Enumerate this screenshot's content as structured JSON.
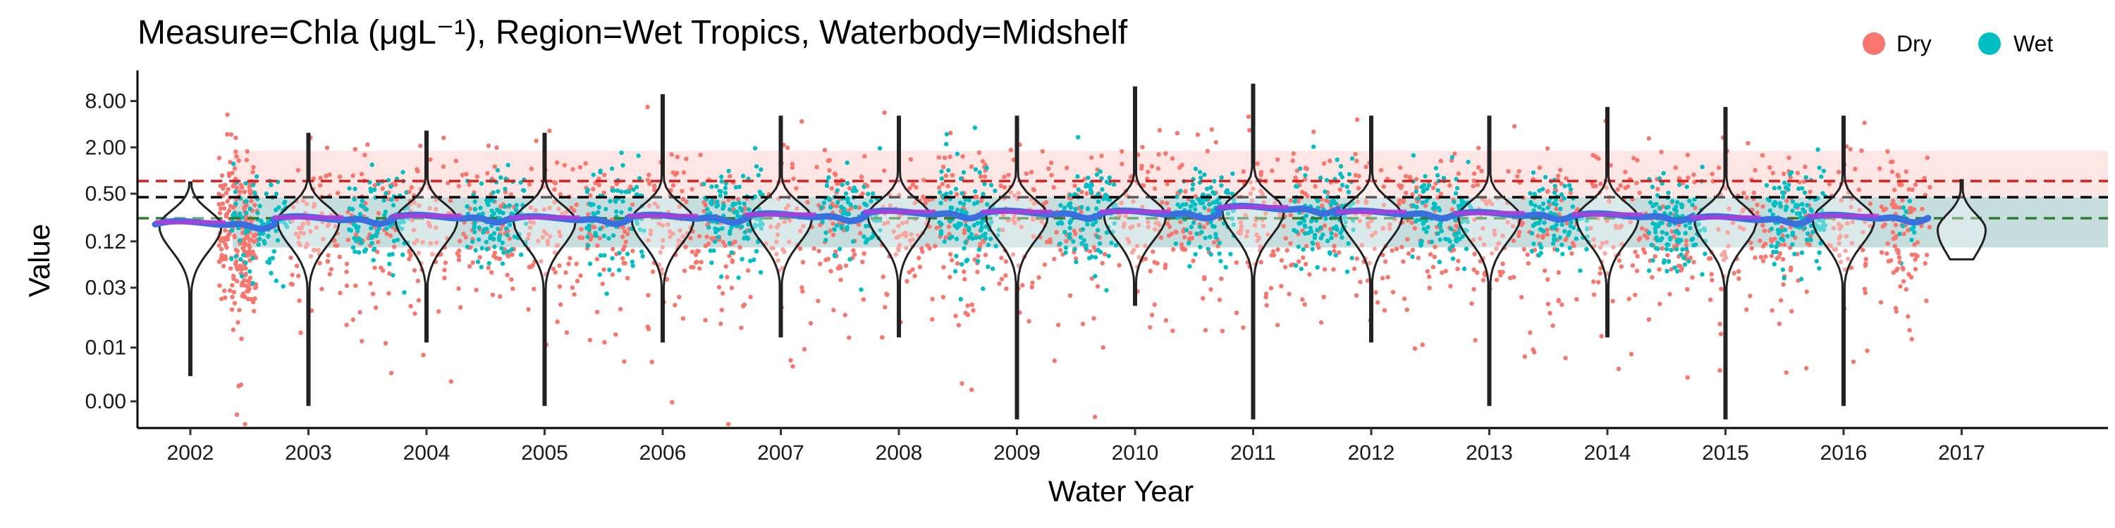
{
  "chart_data": {
    "type": "violin",
    "title": "Measure=Chla (μgL⁻¹), Region=Wet Tropics, Waterbody=Midshelf",
    "xlabel": "Water Year",
    "ylabel": "Value",
    "y_scale": "log",
    "y_ticks": [
      {
        "value": 0.001,
        "label": "0.00"
      },
      {
        "value": 0.005,
        "label": "0.01"
      },
      {
        "value": 0.03,
        "label": "0.03"
      },
      {
        "value": 0.12,
        "label": "0.12"
      },
      {
        "value": 0.5,
        "label": "0.50"
      },
      {
        "value": 2.0,
        "label": "2.00"
      },
      {
        "value": 8.0,
        "label": "8.00"
      }
    ],
    "ylim": [
      0.00045,
      20
    ],
    "categories": [
      "2002",
      "2003",
      "2004",
      "2005",
      "2006",
      "2007",
      "2008",
      "2009",
      "2010",
      "2011",
      "2012",
      "2013",
      "2014",
      "2015",
      "2016",
      "2017"
    ],
    "legend": {
      "placement": "top-right",
      "entries": [
        {
          "name": "Dry",
          "color": "#F8766D"
        },
        {
          "name": "Wet",
          "color": "#00BFC4"
        }
      ]
    },
    "guideline_bands": [
      {
        "from": 0.1,
        "to": 1.8,
        "color": "#F8766D",
        "opacity": 0.18
      },
      {
        "from": 0.1,
        "to": 0.45,
        "color": "#00BFC4",
        "opacity": 0.22
      }
    ],
    "reference_lines": [
      {
        "value": 0.73,
        "color": "#dd1c1c"
      },
      {
        "value": 0.45,
        "color": "#000000"
      },
      {
        "value": 0.24,
        "color": "#2e7d32"
      }
    ],
    "medians": [
      0.19,
      0.22,
      0.23,
      0.22,
      0.23,
      0.24,
      0.26,
      0.26,
      0.26,
      0.3,
      0.26,
      0.25,
      0.24,
      0.22,
      0.23,
      0.17
    ],
    "ranges": [
      [
        0.0022,
        0.7
      ],
      [
        0.0009,
        3.0
      ],
      [
        0.006,
        3.2
      ],
      [
        0.0009,
        3.0
      ],
      [
        0.006,
        9.5
      ],
      [
        0.007,
        5.0
      ],
      [
        0.007,
        5.0
      ],
      [
        0.0006,
        5.0
      ],
      [
        0.018,
        12.0
      ],
      [
        0.0006,
        13.0
      ],
      [
        0.006,
        5.0
      ],
      [
        0.0009,
        5.0
      ],
      [
        0.007,
        6.5
      ],
      [
        0.0006,
        6.5
      ],
      [
        0.0009,
        5.0
      ],
      [
        0.07,
        0.75
      ]
    ],
    "colors": {
      "dry": "#F8766D",
      "wet": "#00BFC4",
      "trend": "#3a6fe0",
      "trend_alt": "#b43bd9"
    }
  }
}
